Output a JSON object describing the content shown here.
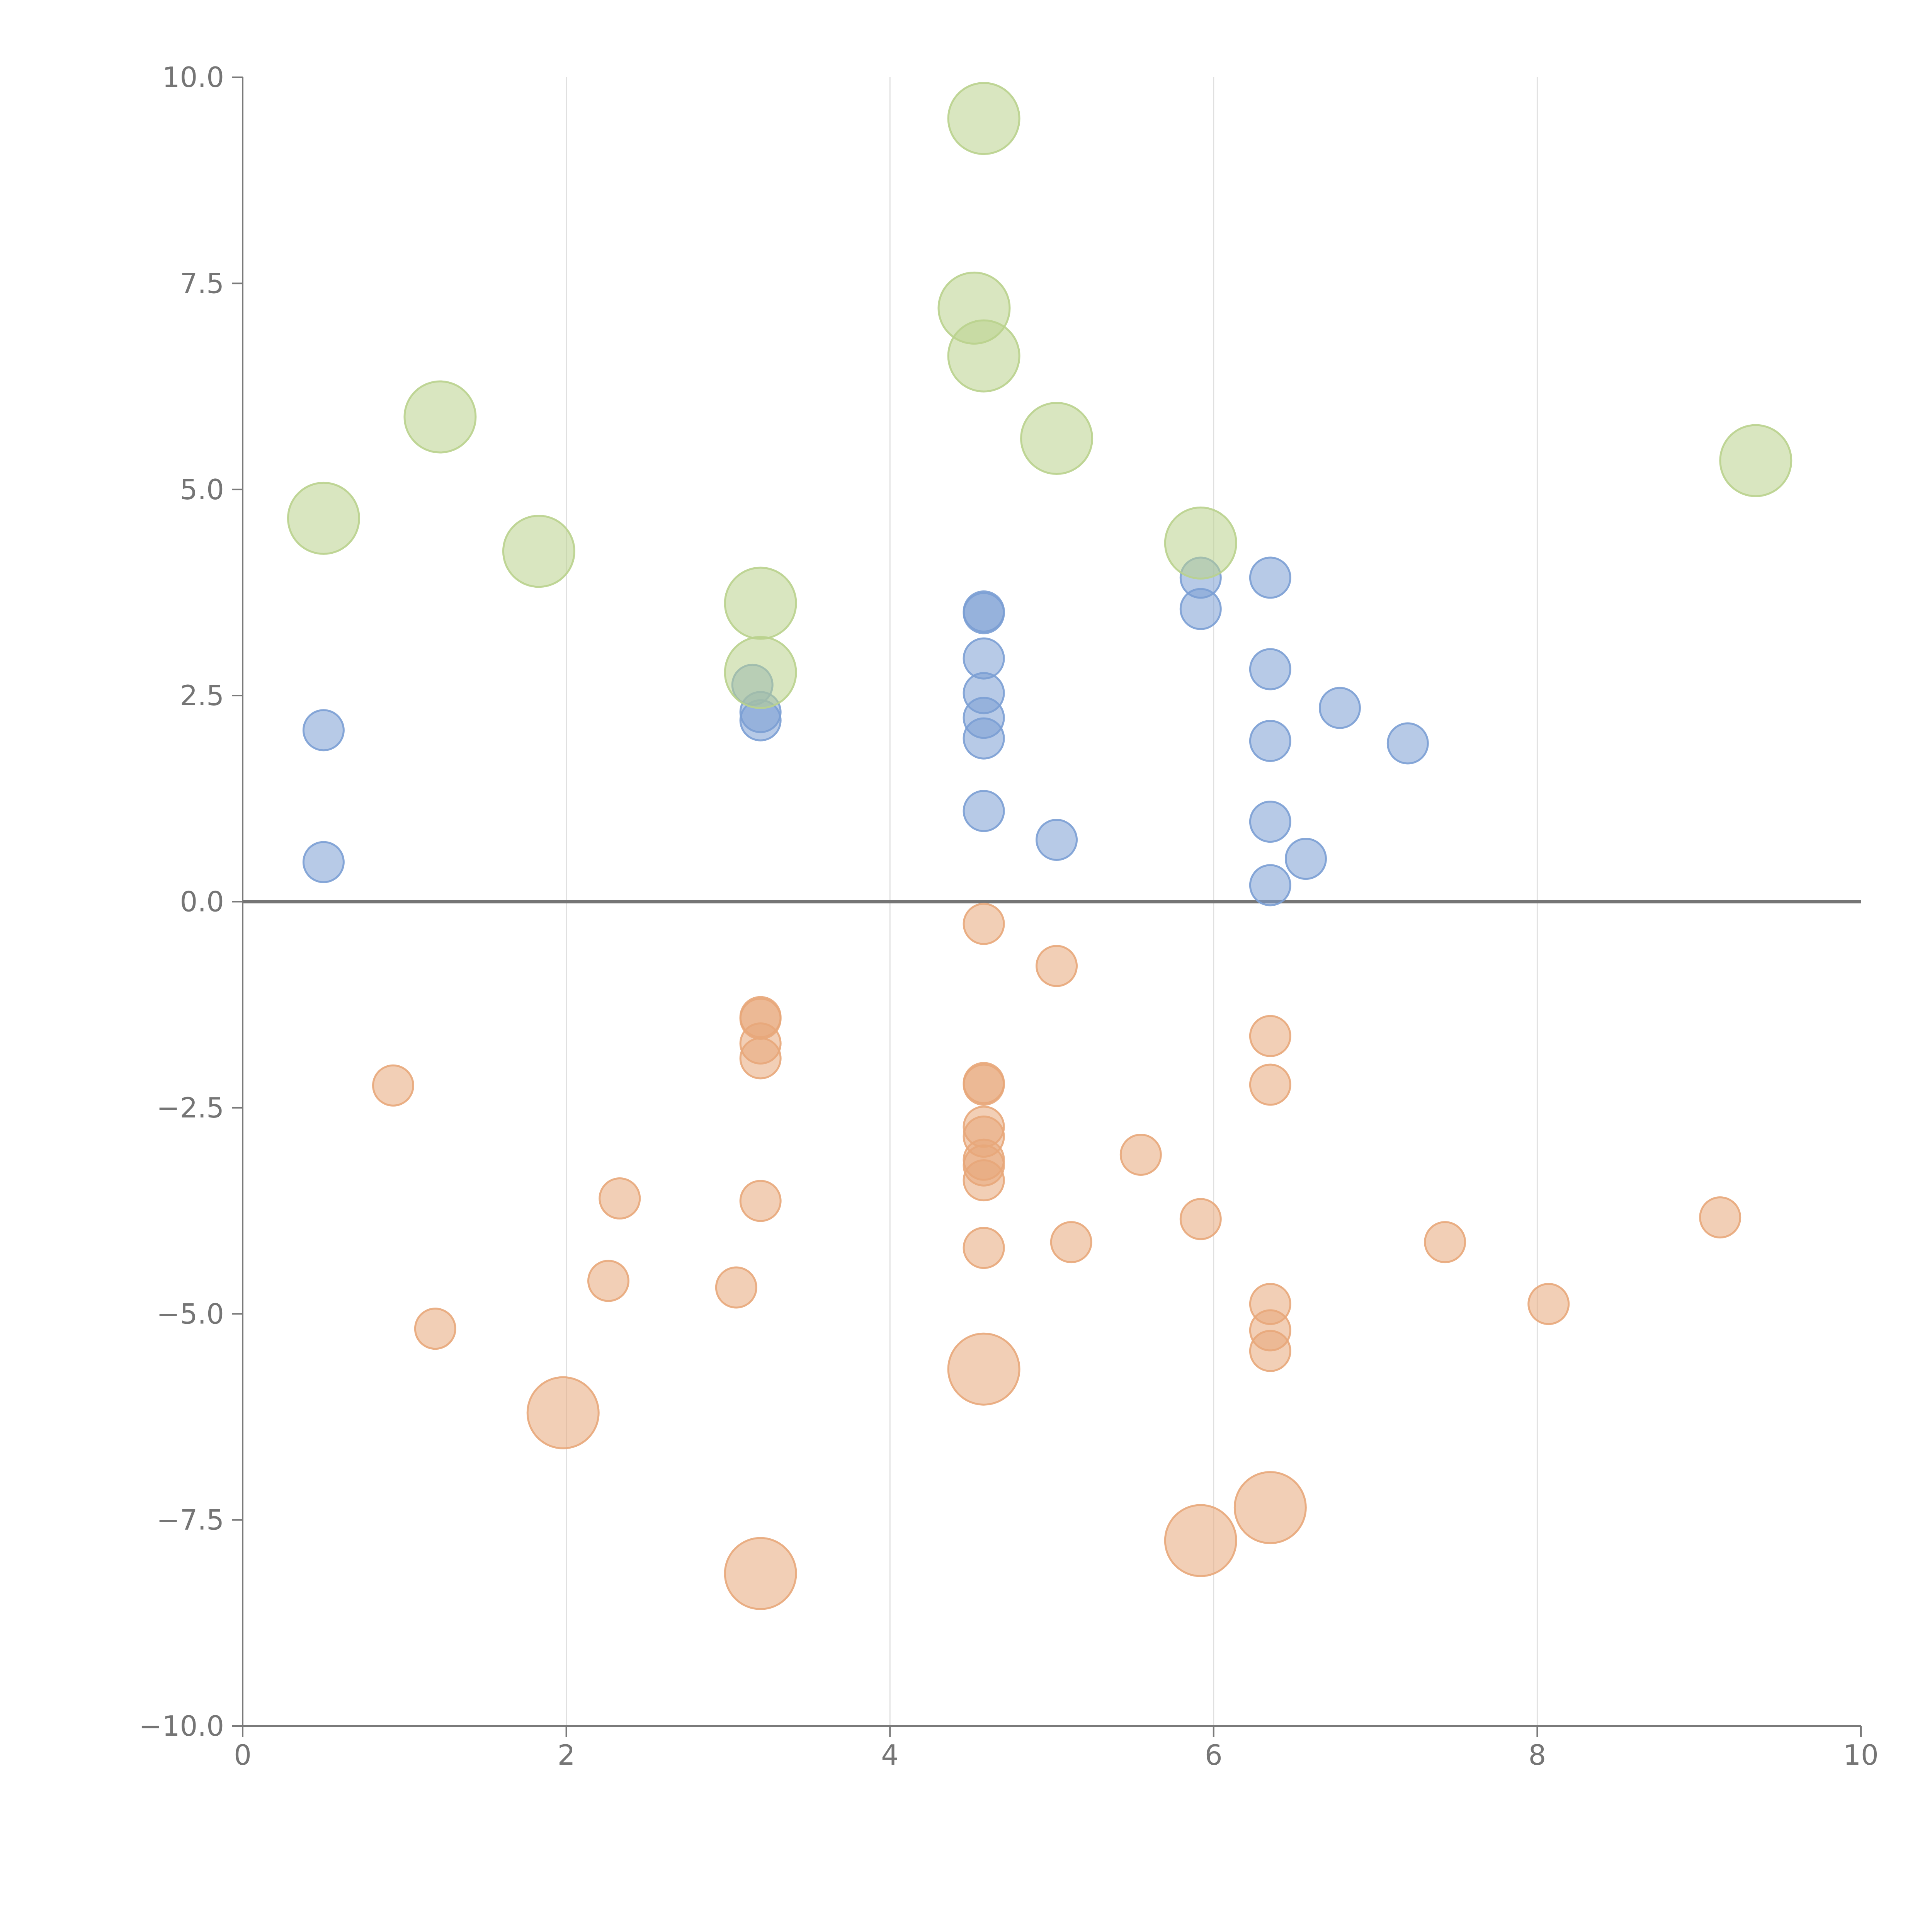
{
  "chart_data": {
    "type": "scatter",
    "title": "",
    "xlabel": "",
    "ylabel": "",
    "xlim": [
      0,
      10
    ],
    "ylim": [
      -10,
      10
    ],
    "x_ticks": [
      0,
      2,
      4,
      6,
      8,
      10
    ],
    "x_tick_labels": [
      "0",
      "2",
      "4",
      "6",
      "8",
      "10"
    ],
    "y_ticks": [
      -10,
      -7.5,
      -5,
      -2.5,
      0,
      2.5,
      5,
      7.5,
      10
    ],
    "y_tick_labels": [
      "−10.0",
      "−7.5",
      "−5.0",
      "−2.5",
      "0.0",
      "2.5",
      "5.0",
      "7.5",
      "10.0"
    ],
    "grid": "vertical",
    "zero_line": true,
    "series": [
      {
        "name": "blue",
        "color": "#7b9fd4",
        "size": "small",
        "points": [
          {
            "x": 0.5,
            "y": 2.08
          },
          {
            "x": 0.5,
            "y": 0.48
          },
          {
            "x": 3.15,
            "y": 2.63
          },
          {
            "x": 3.2,
            "y": 2.3
          },
          {
            "x": 3.2,
            "y": 2.2
          },
          {
            "x": 4.58,
            "y": 3.52
          },
          {
            "x": 4.58,
            "y": 3.5
          },
          {
            "x": 4.58,
            "y": 2.95
          },
          {
            "x": 4.58,
            "y": 2.53
          },
          {
            "x": 4.58,
            "y": 2.23
          },
          {
            "x": 4.58,
            "y": 1.98
          },
          {
            "x": 4.58,
            "y": 1.1
          },
          {
            "x": 5.03,
            "y": 0.75
          },
          {
            "x": 5.92,
            "y": 3.93
          },
          {
            "x": 5.92,
            "y": 3.55
          },
          {
            "x": 6.35,
            "y": 3.93
          },
          {
            "x": 6.35,
            "y": 2.82
          },
          {
            "x": 6.35,
            "y": 1.95
          },
          {
            "x": 6.35,
            "y": 0.97
          },
          {
            "x": 6.35,
            "y": 0.2
          },
          {
            "x": 6.57,
            "y": 0.52
          },
          {
            "x": 6.78,
            "y": 2.35
          },
          {
            "x": 7.2,
            "y": 1.92
          }
        ]
      },
      {
        "name": "orange",
        "color": "#e8a77a",
        "size": "small",
        "points": [
          {
            "x": 0.93,
            "y": -2.23
          },
          {
            "x": 1.19,
            "y": -5.18
          },
          {
            "x": 2.26,
            "y": -4.6
          },
          {
            "x": 2.33,
            "y": -3.6
          },
          {
            "x": 3.05,
            "y": -4.68
          },
          {
            "x": 3.2,
            "y": -1.4
          },
          {
            "x": 3.2,
            "y": -1.42
          },
          {
            "x": 3.2,
            "y": -1.72
          },
          {
            "x": 3.2,
            "y": -1.9
          },
          {
            "x": 3.2,
            "y": -3.63
          },
          {
            "x": 4.58,
            "y": -0.27
          },
          {
            "x": 4.58,
            "y": -2.2
          },
          {
            "x": 4.58,
            "y": -2.22
          },
          {
            "x": 4.58,
            "y": -2.73
          },
          {
            "x": 4.58,
            "y": -2.85
          },
          {
            "x": 4.58,
            "y": -3.13
          },
          {
            "x": 4.58,
            "y": -3.2
          },
          {
            "x": 4.58,
            "y": -3.38
          },
          {
            "x": 4.58,
            "y": -4.2
          },
          {
            "x": 5.03,
            "y": -0.78
          },
          {
            "x": 5.12,
            "y": -4.13
          },
          {
            "x": 5.55,
            "y": -3.07
          },
          {
            "x": 5.92,
            "y": -3.85
          },
          {
            "x": 6.35,
            "y": -1.63
          },
          {
            "x": 6.35,
            "y": -2.22
          },
          {
            "x": 6.35,
            "y": -4.88
          },
          {
            "x": 6.35,
            "y": -5.2
          },
          {
            "x": 6.35,
            "y": -5.45
          },
          {
            "x": 7.43,
            "y": -4.13
          },
          {
            "x": 8.07,
            "y": -4.88
          },
          {
            "x": 9.13,
            "y": -3.83
          }
        ]
      },
      {
        "name": "orange-large",
        "color": "#e8a77a",
        "size": "large",
        "points": [
          {
            "x": 1.98,
            "y": -6.2
          },
          {
            "x": 3.2,
            "y": -8.15
          },
          {
            "x": 4.58,
            "y": -5.67
          },
          {
            "x": 5.92,
            "y": -7.75
          },
          {
            "x": 6.35,
            "y": -7.35
          }
        ]
      },
      {
        "name": "green",
        "color": "#b9d28d",
        "size": "large",
        "points": [
          {
            "x": 0.5,
            "y": 4.65
          },
          {
            "x": 1.22,
            "y": 5.88
          },
          {
            "x": 1.83,
            "y": 4.25
          },
          {
            "x": 3.2,
            "y": 3.62
          },
          {
            "x": 3.2,
            "y": 2.78
          },
          {
            "x": 4.58,
            "y": 9.5
          },
          {
            "x": 4.52,
            "y": 7.2
          },
          {
            "x": 4.58,
            "y": 6.62
          },
          {
            "x": 5.03,
            "y": 5.62
          },
          {
            "x": 5.92,
            "y": 4.35
          },
          {
            "x": 9.35,
            "y": 5.35
          }
        ]
      }
    ]
  }
}
